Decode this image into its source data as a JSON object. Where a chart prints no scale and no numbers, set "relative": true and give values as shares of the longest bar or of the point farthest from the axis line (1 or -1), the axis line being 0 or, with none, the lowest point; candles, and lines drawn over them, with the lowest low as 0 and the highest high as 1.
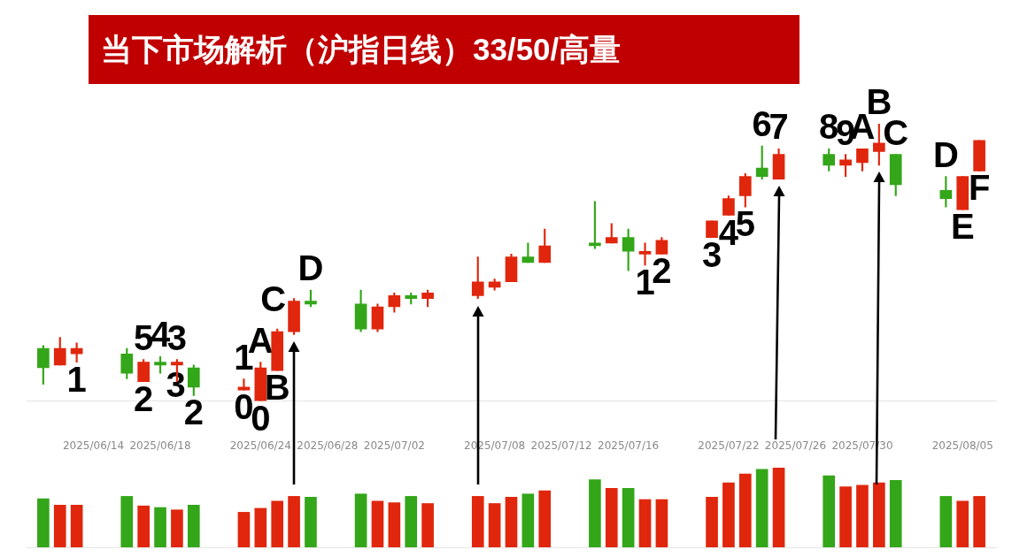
{
  "chart_data": [
    {
      "type": "candlestick",
      "title": "当下市场解析（沪指日线）33/50/高量",
      "relative": true,
      "tick_labels": "x",
      "x": [
        "2025-06-11",
        "2025-06-12",
        "2025-06-13",
        "2025-06-16",
        "2025-06-17",
        "2025-06-18",
        "2025-06-19",
        "2025-06-20",
        "2025-06-23",
        "2025-06-24",
        "2025-06-25",
        "2025-06-26",
        "2025-06-27",
        "2025-06-30",
        "2025-07-01",
        "2025-07-02",
        "2025-07-03",
        "2025-07-04",
        "2025-07-07",
        "2025-07-08",
        "2025-07-09",
        "2025-07-10",
        "2025-07-11",
        "2025-07-14",
        "2025-07-15",
        "2025-07-16",
        "2025-07-17",
        "2025-07-18",
        "2025-07-21",
        "2025-07-22",
        "2025-07-23",
        "2025-07-24",
        "2025-07-25",
        "2025-07-28",
        "2025-07-29",
        "2025-07-30",
        "2025-07-31",
        "2025-08-01",
        "2025-08-04",
        "2025-08-05",
        "2025-08-06"
      ],
      "ohlc": [
        [
          0.19,
          0.2,
          0.06,
          0.12
        ],
        [
          0.13,
          0.23,
          0.13,
          0.19
        ],
        [
          0.17,
          0.21,
          0.14,
          0.19
        ],
        [
          0.17,
          0.19,
          0.08,
          0.1
        ],
        [
          0.07,
          0.15,
          0.07,
          0.14
        ],
        [
          0.14,
          0.16,
          0.1,
          0.13
        ],
        [
          0.13,
          0.15,
          0.07,
          0.14
        ],
        [
          0.12,
          0.13,
          0.02,
          0.05
        ],
        [
          0.04,
          0.08,
          0.04,
          0.05
        ],
        [
          0,
          0.14,
          0,
          0.12
        ],
        [
          0.11,
          0.26,
          0.11,
          0.25
        ],
        [
          0.25,
          0.37,
          0.24,
          0.36
        ],
        [
          0.36,
          0.4,
          0.34,
          0.35
        ],
        [
          0.35,
          0.4,
          0.25,
          0.26
        ],
        [
          0.26,
          0.35,
          0.25,
          0.34
        ],
        [
          0.34,
          0.39,
          0.32,
          0.38
        ],
        [
          0.38,
          0.39,
          0.35,
          0.37
        ],
        [
          0.37,
          0.4,
          0.34,
          0.39
        ],
        [
          0.38,
          0.52,
          0.37,
          0.43
        ],
        [
          0.41,
          0.44,
          0.4,
          0.43
        ],
        [
          0.43,
          0.53,
          0.43,
          0.52
        ],
        [
          0.52,
          0.57,
          0.5,
          0.5
        ],
        [
          0.5,
          0.62,
          0.5,
          0.56
        ],
        [
          0.57,
          0.72,
          0.55,
          0.56
        ],
        [
          0.57,
          0.64,
          0.57,
          0.59
        ],
        [
          0.59,
          0.62,
          0.47,
          0.54
        ],
        [
          0.53,
          0.57,
          0.49,
          0.54
        ],
        [
          0.53,
          0.59,
          0.53,
          0.58
        ],
        [
          0.59,
          0.65,
          0.59,
          0.65
        ],
        [
          0.67,
          0.74,
          0.67,
          0.73
        ],
        [
          0.74,
          0.82,
          0.7,
          0.81
        ],
        [
          0.84,
          0.92,
          0.8,
          0.81
        ],
        [
          0.8,
          0.91,
          0.8,
          0.89
        ],
        [
          0.89,
          0.91,
          0.83,
          0.85
        ],
        [
          0.85,
          0.89,
          0.81,
          0.87
        ],
        [
          0.86,
          0.91,
          0.83,
          0.91
        ],
        [
          0.9,
          1,
          0.85,
          0.93
        ],
        [
          0.89,
          0.89,
          0.74,
          0.78
        ],
        [
          0.76,
          0.81,
          0.7,
          0.73
        ],
        [
          0.69,
          0.81,
          0.69,
          0.81
        ],
        [
          0.83,
          0.94,
          0.83,
          0.94
        ]
      ],
      "colors": [
        "#33a619",
        "#e0260c",
        "#e0260c",
        "#33a619",
        "#e0260c",
        "#33a619",
        "#e0260c",
        "#33a619",
        "#e0260c",
        "#e0260c",
        "#e0260c",
        "#e0260c",
        "#33a619",
        "#33a619",
        "#e0260c",
        "#e0260c",
        "#33a619",
        "#e0260c",
        "#e0260c",
        "#e0260c",
        "#e0260c",
        "#33a619",
        "#e0260c",
        "#33a619",
        "#e0260c",
        "#33a619",
        "#e0260c",
        "#e0260c",
        "#e0260c",
        "#e0260c",
        "#e0260c",
        "#33a619",
        "#e0260c",
        "#33a619",
        "#e0260c",
        "#e0260c",
        "#e0260c",
        "#33a619",
        "#33a619",
        "#e0260c",
        "#e0260c"
      ],
      "xlim": [
        "2025-06-10",
        "2025-08-07"
      ],
      "xticks": [
        {
          "value": "2025-06-14",
          "label": "2025/06/14"
        },
        {
          "value": "2025-06-18",
          "label": "2025/06/18"
        },
        {
          "value": "2025-06-24",
          "label": "2025/06/24"
        },
        {
          "value": "2025-06-28",
          "label": "2025/06/28"
        },
        {
          "value": "2025-07-02",
          "label": "2025/07/02"
        },
        {
          "value": "2025-07-08",
          "label": "2025/07/08"
        },
        {
          "value": "2025-07-12",
          "label": "2025/07/12"
        },
        {
          "value": "2025-07-16",
          "label": "2025/07/16"
        },
        {
          "value": "2025-07-22",
          "label": "2025/07/22"
        },
        {
          "value": "2025-07-26",
          "label": "2025/07/26"
        },
        {
          "value": "2025-07-30",
          "label": "2025/07/30"
        },
        {
          "value": "2025-08-05",
          "label": "2025/08/05"
        }
      ],
      "annotations": [
        {
          "text": "1",
          "x": "2025-06-13",
          "y": 0.14
        },
        {
          "text": "2",
          "x": "2025-06-17",
          "y": 0.07
        },
        {
          "text": "5",
          "x": "2025-06-17",
          "y": 0.15
        },
        {
          "text": "4",
          "x": "2025-06-18",
          "y": 0.16
        },
        {
          "text": "3",
          "x": "2025-06-19",
          "y": 0.15
        },
        {
          "text": "2",
          "x": "2025-06-20",
          "y": 0.02
        },
        {
          "text": "3",
          "x": "2025-06-20",
          "y": 0.05
        },
        {
          "text": "1",
          "x": "2025-06-23",
          "y": 0.08
        },
        {
          "text": "0",
          "x": "2025-06-23",
          "y": 0.04
        },
        {
          "text": "A",
          "x": "2025-06-24",
          "y": 0.14
        },
        {
          "text": "0",
          "x": "2025-06-24",
          "y": 0
        },
        {
          "text": "B",
          "x": "2025-06-25",
          "y": 0.11
        },
        {
          "text": "C",
          "x": "2025-06-26",
          "y": 0.36
        },
        {
          "text": "D",
          "x": "2025-06-27",
          "y": 0.4
        },
        {
          "text": "1",
          "x": "2025-07-17",
          "y": 0.49
        },
        {
          "text": "2",
          "x": "2025-07-18",
          "y": 0.53
        },
        {
          "text": "3",
          "x": "2025-07-21",
          "y": 0.59
        },
        {
          "text": "4",
          "x": "2025-07-22",
          "y": 0.67
        },
        {
          "text": "5",
          "x": "2025-07-23",
          "y": 0.7
        },
        {
          "text": "6",
          "x": "2025-07-24",
          "y": 0.92
        },
        {
          "text": "7",
          "x": "2025-07-25",
          "y": 0.91
        },
        {
          "text": "8",
          "x": "2025-07-28",
          "y": 0.91
        },
        {
          "text": "9",
          "x": "2025-07-29",
          "y": 0.89
        },
        {
          "text": "A",
          "x": "2025-07-30",
          "y": 0.91
        },
        {
          "text": "B",
          "x": "2025-07-31",
          "y": 1
        },
        {
          "text": "C",
          "x": "2025-08-01",
          "y": 0.89
        },
        {
          "text": "D",
          "x": "2025-08-04",
          "y": 0.81
        },
        {
          "text": "E",
          "x": "2025-08-05",
          "y": 0.69
        },
        {
          "text": "F",
          "x": "2025-08-06",
          "y": 0.83
        }
      ]
    },
    {
      "type": "bar",
      "relative": true,
      "tick_labels": false,
      "x": [
        "2025-06-11",
        "2025-06-12",
        "2025-06-13",
        "2025-06-16",
        "2025-06-17",
        "2025-06-18",
        "2025-06-19",
        "2025-06-20",
        "2025-06-23",
        "2025-06-24",
        "2025-06-25",
        "2025-06-26",
        "2025-06-27",
        "2025-06-30",
        "2025-07-01",
        "2025-07-02",
        "2025-07-03",
        "2025-07-04",
        "2025-07-07",
        "2025-07-08",
        "2025-07-09",
        "2025-07-10",
        "2025-07-11",
        "2025-07-14",
        "2025-07-15",
        "2025-07-16",
        "2025-07-17",
        "2025-07-18",
        "2025-07-21",
        "2025-07-22",
        "2025-07-23",
        "2025-07-24",
        "2025-07-25",
        "2025-07-28",
        "2025-07-29",
        "2025-07-30",
        "2025-07-31",
        "2025-08-01",
        "2025-08-04",
        "2025-08-05",
        "2025-08-06"
      ],
      "values": [
        0.61,
        0.53,
        0.53,
        0.64,
        0.52,
        0.5,
        0.47,
        0.53,
        0.44,
        0.49,
        0.58,
        0.64,
        0.63,
        0.67,
        0.58,
        0.56,
        0.64,
        0.55,
        0.64,
        0.55,
        0.63,
        0.67,
        0.71,
        0.85,
        0.74,
        0.74,
        0.6,
        0.6,
        0.63,
        0.81,
        0.92,
        0.98,
        1,
        0.9,
        0.76,
        0.78,
        0.81,
        0.84,
        0.64,
        0.58,
        0.64
      ],
      "colors": [
        "#33a619",
        "#e0260c",
        "#e0260c",
        "#33a619",
        "#e0260c",
        "#33a619",
        "#e0260c",
        "#33a619",
        "#e0260c",
        "#e0260c",
        "#e0260c",
        "#e0260c",
        "#33a619",
        "#33a619",
        "#e0260c",
        "#e0260c",
        "#33a619",
        "#e0260c",
        "#e0260c",
        "#e0260c",
        "#e0260c",
        "#33a619",
        "#e0260c",
        "#33a619",
        "#e0260c",
        "#33a619",
        "#e0260c",
        "#e0260c",
        "#e0260c",
        "#e0260c",
        "#e0260c",
        "#33a619",
        "#e0260c",
        "#33a619",
        "#e0260c",
        "#e0260c",
        "#e0260c",
        "#33a619",
        "#33a619",
        "#e0260c",
        "#e0260c"
      ],
      "xlim": [
        "2025-06-10",
        "2025-08-07"
      ]
    }
  ]
}
